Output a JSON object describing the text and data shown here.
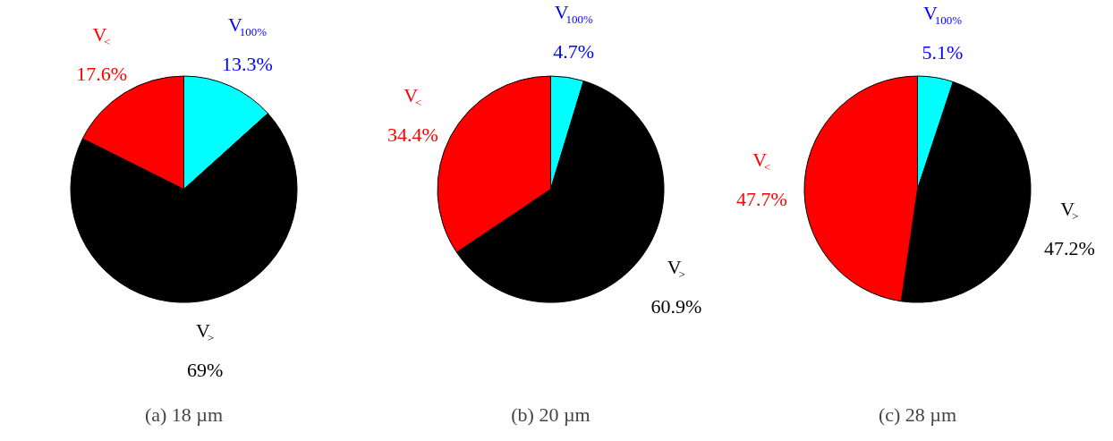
{
  "chart_data": [
    {
      "type": "pie",
      "title": "(a) 18 µm",
      "categories": [
        "V$_{100%}$",
        "V$_{>}$",
        "V$_{<}$"
      ],
      "values": [
        13.3,
        69,
        17.6
      ],
      "colors": [
        "#00ffff",
        "#000000",
        "#ff0000"
      ],
      "value_labels": [
        "13.3%",
        "69%",
        "17.6%"
      ]
    },
    {
      "type": "pie",
      "title": "(b) 20 µm",
      "categories": [
        "V$_{100%}$",
        "V$_{>}$",
        "V$_{<}$"
      ],
      "values": [
        4.7,
        60.9,
        34.4
      ],
      "colors": [
        "#00ffff",
        "#000000",
        "#ff0000"
      ],
      "value_labels": [
        "4.7%",
        "60.9%",
        "34.4%"
      ]
    },
    {
      "type": "pie",
      "title": "(c) 28 µm",
      "categories": [
        "V$_{100%}$",
        "V$_{>}$",
        "V$_{<}$"
      ],
      "values": [
        5.1,
        47.2,
        47.7
      ],
      "colors": [
        "#00ffff",
        "#000000",
        "#ff0000"
      ],
      "value_labels": [
        "5.1%",
        "47.2%",
        "47.7%"
      ]
    }
  ]
}
